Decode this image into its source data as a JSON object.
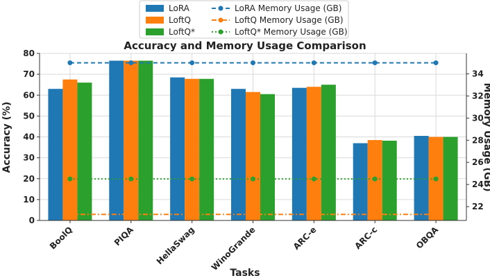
{
  "chart_data": {
    "type": "bar",
    "title": "Accuracy and Memory Usage Comparison",
    "xlabel": "Tasks",
    "ylabel": "Accuracy (%)",
    "y2label": "Memory Usage (GB)",
    "categories": [
      "BoolQ",
      "PIQA",
      "HellaSwag",
      "WinoGrande",
      "ARC-e",
      "ARC-c",
      "OBQA"
    ],
    "ylim": [
      0,
      80
    ],
    "yticks": [
      0,
      10,
      20,
      30,
      40,
      50,
      60,
      70,
      80
    ],
    "y2lim": [
      20.75,
      35.85
    ],
    "y2ticks": [
      22,
      24,
      26,
      28,
      30,
      32,
      34
    ],
    "grid": true,
    "legend_placement": "top-center",
    "series": [
      {
        "name": "LoRA",
        "kind": "bar",
        "color": "#1f77b4",
        "values": [
          63.0,
          76.5,
          68.5,
          63.0,
          63.5,
          37.0,
          40.5
        ]
      },
      {
        "name": "LoftQ",
        "kind": "bar",
        "color": "#ff7f0e",
        "values": [
          67.5,
          76.5,
          67.8,
          61.5,
          64.0,
          38.5,
          40.0
        ]
      },
      {
        "name": "LoftQ*",
        "kind": "bar",
        "color": "#2ca02c",
        "values": [
          66.0,
          76.5,
          67.8,
          60.5,
          65.0,
          38.2,
          40.0
        ]
      },
      {
        "name": "LoRA Memory Usage (GB)",
        "kind": "line",
        "axis": "right",
        "style": "dashed",
        "color": "#1f77b4",
        "values": [
          35.0,
          35.0,
          35.0,
          35.0,
          35.0,
          35.0,
          35.0
        ]
      },
      {
        "name": "LoftQ Memory Usage (GB)",
        "kind": "line",
        "axis": "right",
        "style": "dashdot",
        "color": "#ff7f0e",
        "values": [
          21.3,
          21.3,
          21.3,
          21.3,
          21.3,
          21.3,
          21.3
        ]
      },
      {
        "name": "LoftQ* Memory Usage (GB)",
        "kind": "line",
        "axis": "right",
        "style": "dotted",
        "color": "#2ca02c",
        "values": [
          24.5,
          24.5,
          24.5,
          24.5,
          24.5,
          24.5,
          24.5
        ]
      }
    ]
  }
}
